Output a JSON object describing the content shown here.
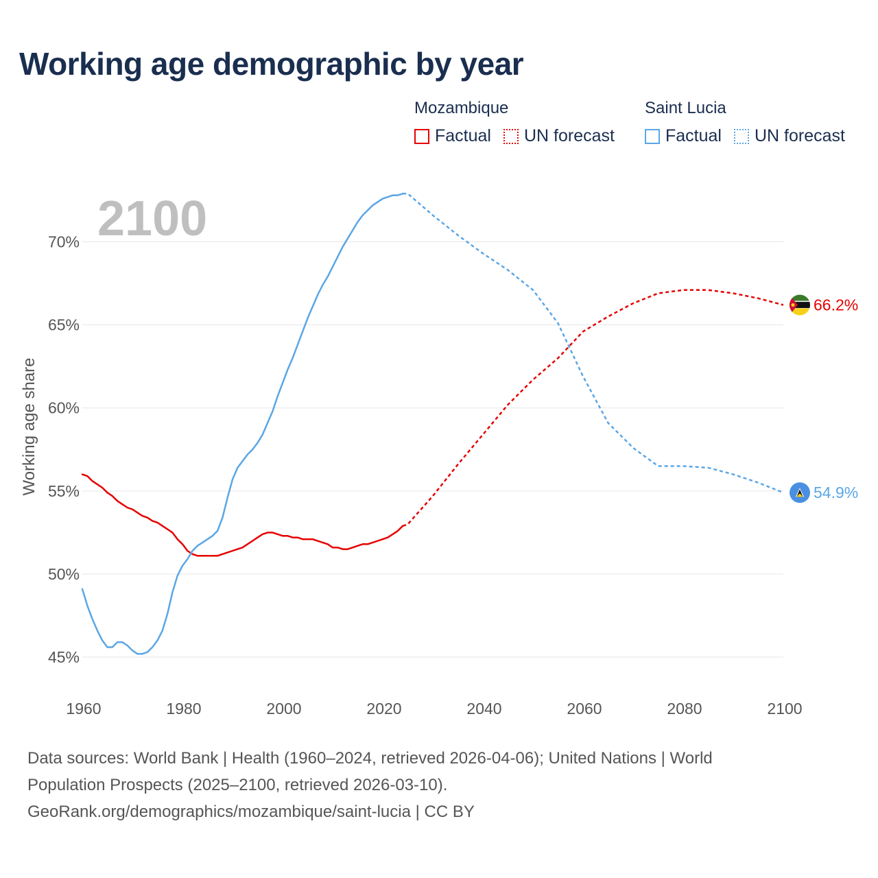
{
  "title": "Working age demographic by year",
  "year_label": "2100",
  "legend": {
    "groups": [
      {
        "name": "Mozambique",
        "factual": "Factual",
        "forecast": "UN forecast"
      },
      {
        "name": "Saint Lucia",
        "factual": "Factual",
        "forecast": "UN forecast"
      }
    ]
  },
  "colors": {
    "mozambique": "#e60000",
    "saint_lucia": "#5aa6e6",
    "grid": "#e6e6e6",
    "axis_text": "#555555",
    "year": "#bfbfbf"
  },
  "footer": {
    "line1": "Data sources: World Bank | Health (1960–2024, retrieved 2026-04-06); United Nations | World",
    "line2": "Population Prospects (2025–2100, retrieved 2026-03-10).",
    "line3": "GeoRank.org/demographics/mozambique/saint-lucia | CC BY"
  },
  "chart_data": {
    "type": "line",
    "title": "Working age demographic by year",
    "ylabel": "Working age share",
    "xlabel": "",
    "xlim": [
      1960,
      2100
    ],
    "ylim": [
      45,
      72.5
    ],
    "x_ticks": [
      1960,
      1980,
      2000,
      2020,
      2040,
      2060,
      2080,
      2100
    ],
    "y_ticks": [
      45,
      50,
      55,
      60,
      65,
      70
    ],
    "y_tick_labels": [
      "45%",
      "50%",
      "55%",
      "60%",
      "65%",
      "70%"
    ],
    "factual_until": 2024,
    "series": [
      {
        "name": "Mozambique",
        "end_label": "66.2%",
        "points": [
          [
            1960,
            56.0
          ],
          [
            1961,
            55.9
          ],
          [
            1962,
            55.6
          ],
          [
            1963,
            55.4
          ],
          [
            1964,
            55.2
          ],
          [
            1965,
            54.9
          ],
          [
            1966,
            54.7
          ],
          [
            1967,
            54.4
          ],
          [
            1968,
            54.2
          ],
          [
            1969,
            54.0
          ],
          [
            1970,
            53.9
          ],
          [
            1971,
            53.7
          ],
          [
            1972,
            53.5
          ],
          [
            1973,
            53.4
          ],
          [
            1974,
            53.2
          ],
          [
            1975,
            53.1
          ],
          [
            1976,
            52.9
          ],
          [
            1977,
            52.7
          ],
          [
            1978,
            52.5
          ],
          [
            1979,
            52.1
          ],
          [
            1980,
            51.8
          ],
          [
            1981,
            51.4
          ],
          [
            1982,
            51.2
          ],
          [
            1983,
            51.1
          ],
          [
            1984,
            51.1
          ],
          [
            1985,
            51.1
          ],
          [
            1986,
            51.1
          ],
          [
            1987,
            51.1
          ],
          [
            1988,
            51.2
          ],
          [
            1989,
            51.3
          ],
          [
            1990,
            51.4
          ],
          [
            1991,
            51.5
          ],
          [
            1992,
            51.6
          ],
          [
            1993,
            51.8
          ],
          [
            1994,
            52.0
          ],
          [
            1995,
            52.2
          ],
          [
            1996,
            52.4
          ],
          [
            1997,
            52.5
          ],
          [
            1998,
            52.5
          ],
          [
            1999,
            52.4
          ],
          [
            2000,
            52.3
          ],
          [
            2001,
            52.3
          ],
          [
            2002,
            52.2
          ],
          [
            2003,
            52.2
          ],
          [
            2004,
            52.1
          ],
          [
            2005,
            52.1
          ],
          [
            2006,
            52.1
          ],
          [
            2007,
            52.0
          ],
          [
            2008,
            51.9
          ],
          [
            2009,
            51.8
          ],
          [
            2010,
            51.6
          ],
          [
            2011,
            51.6
          ],
          [
            2012,
            51.5
          ],
          [
            2013,
            51.5
          ],
          [
            2014,
            51.6
          ],
          [
            2015,
            51.7
          ],
          [
            2016,
            51.8
          ],
          [
            2017,
            51.8
          ],
          [
            2018,
            51.9
          ],
          [
            2019,
            52.0
          ],
          [
            2020,
            52.1
          ],
          [
            2021,
            52.2
          ],
          [
            2022,
            52.4
          ],
          [
            2023,
            52.6
          ],
          [
            2024,
            52.9
          ],
          [
            2025,
            53.0
          ],
          [
            2030,
            54.7
          ],
          [
            2035,
            56.6
          ],
          [
            2040,
            58.4
          ],
          [
            2045,
            60.2
          ],
          [
            2050,
            61.7
          ],
          [
            2055,
            63.0
          ],
          [
            2060,
            64.6
          ],
          [
            2065,
            65.5
          ],
          [
            2070,
            66.3
          ],
          [
            2075,
            66.9
          ],
          [
            2080,
            67.1
          ],
          [
            2085,
            67.1
          ],
          [
            2090,
            66.9
          ],
          [
            2095,
            66.6
          ],
          [
            2100,
            66.2
          ]
        ]
      },
      {
        "name": "Saint Lucia",
        "end_label": "54.9%",
        "points": [
          [
            1960,
            49.1
          ],
          [
            1961,
            48.1
          ],
          [
            1962,
            47.3
          ],
          [
            1963,
            46.6
          ],
          [
            1964,
            46.0
          ],
          [
            1965,
            45.6
          ],
          [
            1966,
            45.6
          ],
          [
            1967,
            45.9
          ],
          [
            1968,
            45.9
          ],
          [
            1969,
            45.7
          ],
          [
            1970,
            45.4
          ],
          [
            1971,
            45.2
          ],
          [
            1972,
            45.2
          ],
          [
            1973,
            45.3
          ],
          [
            1974,
            45.6
          ],
          [
            1975,
            46.0
          ],
          [
            1976,
            46.6
          ],
          [
            1977,
            47.6
          ],
          [
            1978,
            48.9
          ],
          [
            1979,
            49.9
          ],
          [
            1980,
            50.5
          ],
          [
            1981,
            50.9
          ],
          [
            1982,
            51.4
          ],
          [
            1983,
            51.7
          ],
          [
            1984,
            51.9
          ],
          [
            1985,
            52.1
          ],
          [
            1986,
            52.3
          ],
          [
            1987,
            52.6
          ],
          [
            1988,
            53.4
          ],
          [
            1989,
            54.6
          ],
          [
            1990,
            55.7
          ],
          [
            1991,
            56.4
          ],
          [
            1992,
            56.8
          ],
          [
            1993,
            57.2
          ],
          [
            1994,
            57.5
          ],
          [
            1995,
            57.9
          ],
          [
            1996,
            58.4
          ],
          [
            1997,
            59.1
          ],
          [
            1998,
            59.8
          ],
          [
            1999,
            60.7
          ],
          [
            2000,
            61.5
          ],
          [
            2001,
            62.3
          ],
          [
            2002,
            63.0
          ],
          [
            2003,
            63.8
          ],
          [
            2004,
            64.6
          ],
          [
            2005,
            65.4
          ],
          [
            2006,
            66.1
          ],
          [
            2007,
            66.8
          ],
          [
            2008,
            67.4
          ],
          [
            2009,
            67.9
          ],
          [
            2010,
            68.5
          ],
          [
            2011,
            69.1
          ],
          [
            2012,
            69.7
          ],
          [
            2013,
            70.2
          ],
          [
            2014,
            70.7
          ],
          [
            2015,
            71.2
          ],
          [
            2016,
            71.6
          ],
          [
            2017,
            71.9
          ],
          [
            2018,
            72.2
          ],
          [
            2019,
            72.4
          ],
          [
            2020,
            72.6
          ],
          [
            2021,
            72.7
          ],
          [
            2022,
            72.8
          ],
          [
            2023,
            72.8
          ],
          [
            2024,
            72.9
          ],
          [
            2025,
            72.9
          ],
          [
            2030,
            71.6
          ],
          [
            2035,
            70.4
          ],
          [
            2040,
            69.3
          ],
          [
            2045,
            68.3
          ],
          [
            2050,
            67.1
          ],
          [
            2055,
            65.1
          ],
          [
            2060,
            61.9
          ],
          [
            2065,
            59.1
          ],
          [
            2070,
            57.6
          ],
          [
            2075,
            56.5
          ],
          [
            2080,
            56.5
          ],
          [
            2085,
            56.4
          ],
          [
            2090,
            56.0
          ],
          [
            2095,
            55.5
          ],
          [
            2100,
            54.9
          ]
        ]
      }
    ]
  }
}
